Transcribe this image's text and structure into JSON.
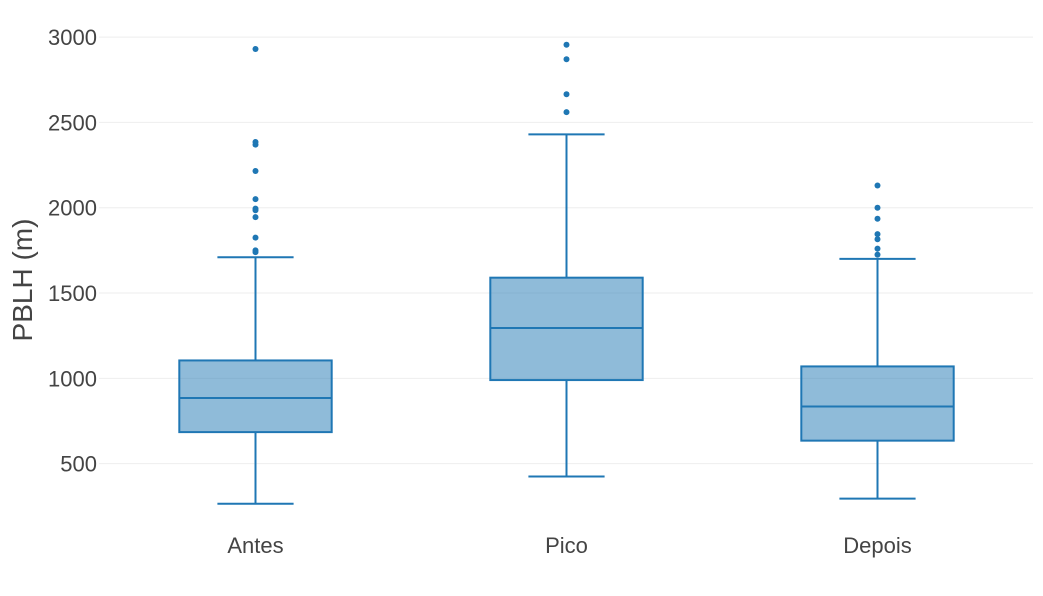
{
  "chart_data": {
    "type": "box",
    "title": "",
    "xlabel": "",
    "ylabel": "PBLH (m)",
    "ylim": [
      170,
      3100
    ],
    "yticks": [
      500,
      1000,
      1500,
      2000,
      2500,
      3000
    ],
    "grid": true,
    "legend": "none",
    "colors": {
      "line": "#1f77b4",
      "fill": "#1f77b4",
      "fill_opacity": 0.5,
      "grid": "#eeeeee",
      "text": "#444444"
    },
    "categories": [
      "Antes",
      "Pico",
      "Depois"
    ],
    "boxes": [
      {
        "category": "Antes",
        "min": 265,
        "q1": 685,
        "median": 885,
        "q3": 1105,
        "max": 1710,
        "outliers": [
          1740,
          1750,
          1825,
          1945,
          1985,
          1995,
          2050,
          2215,
          2370,
          2385,
          2930
        ]
      },
      {
        "category": "Pico",
        "min": 425,
        "q1": 990,
        "median": 1295,
        "q3": 1590,
        "max": 2430,
        "outliers": [
          2560,
          2665,
          2870,
          2955
        ]
      },
      {
        "category": "Depois",
        "min": 295,
        "q1": 635,
        "median": 835,
        "q3": 1070,
        "max": 1700,
        "outliers": [
          1725,
          1760,
          1815,
          1845,
          1935,
          2000,
          2130
        ]
      }
    ]
  }
}
